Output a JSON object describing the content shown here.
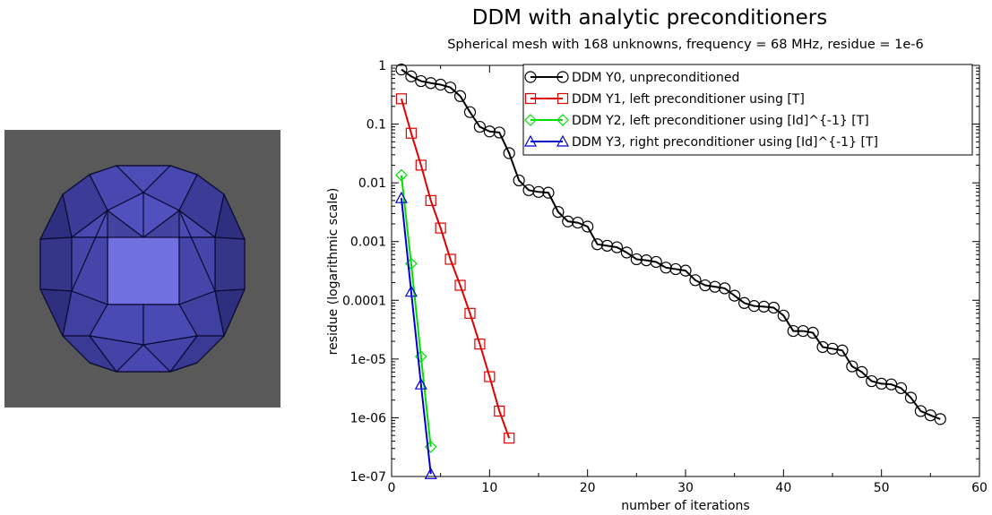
{
  "mesh_image": {
    "icon": "icosphere-mesh-render",
    "background": "#595959",
    "face_color": "#4a4aa8",
    "center_face_color": "#7070e0"
  },
  "chart_data": {
    "type": "line",
    "title": "DDM with analytic preconditioners",
    "subtitle": "Spherical mesh with 168 unknowns, frequency = 68 MHz, residue = 1e-6",
    "xlabel": "number of iterations",
    "ylabel": "residue (logarithmic scale)",
    "xlim": [
      0,
      60
    ],
    "ylim": [
      1e-07,
      1
    ],
    "yscale": "log",
    "xticks": [
      0,
      10,
      20,
      30,
      40,
      50,
      60
    ],
    "yticks": [
      {
        "value": 1,
        "label": "1"
      },
      {
        "value": 0.1,
        "label": "0.1"
      },
      {
        "value": 0.01,
        "label": "0.01"
      },
      {
        "value": 0.001,
        "label": "0.001"
      },
      {
        "value": 0.0001,
        "label": "0.0001"
      },
      {
        "value": 1e-05,
        "label": "1e-05"
      },
      {
        "value": 1e-06,
        "label": "1e-06"
      },
      {
        "value": 1e-07,
        "label": "1e-07"
      }
    ],
    "legend_position": "top-right",
    "grid": false,
    "series": [
      {
        "name": "DDM Y0, unpreconditioned",
        "color": "#000000",
        "marker": "circle",
        "x": [
          1,
          2,
          3,
          4,
          5,
          6,
          7,
          8,
          9,
          10,
          11,
          12,
          13,
          14,
          15,
          16,
          17,
          18,
          19,
          20,
          21,
          22,
          23,
          24,
          25,
          26,
          27,
          28,
          29,
          30,
          31,
          32,
          33,
          34,
          35,
          36,
          37,
          38,
          39,
          40,
          41,
          42,
          43,
          44,
          45,
          46,
          47,
          48,
          49,
          50,
          51,
          52,
          53,
          54,
          55,
          56
        ],
        "y": [
          0.85,
          0.65,
          0.54,
          0.5,
          0.47,
          0.42,
          0.3,
          0.16,
          0.09,
          0.075,
          0.072,
          0.032,
          0.011,
          0.0075,
          0.007,
          0.0068,
          0.0032,
          0.0022,
          0.0021,
          0.0018,
          0.0009,
          0.00085,
          0.0008,
          0.00065,
          0.0005,
          0.00048,
          0.00045,
          0.00036,
          0.00034,
          0.00032,
          0.00022,
          0.00018,
          0.00017,
          0.00016,
          0.00012,
          9e-05,
          8e-05,
          7.8e-05,
          7.5e-05,
          5.5e-05,
          3e-05,
          3e-05,
          2.8e-05,
          1.6e-05,
          1.5e-05,
          1.4e-05,
          7.5e-06,
          6e-06,
          4.2e-06,
          3.8e-06,
          3.7e-06,
          3.2e-06,
          2.2e-06,
          1.3e-06,
          1.1e-06,
          9.5e-07
        ]
      },
      {
        "name": "DDM Y1, left preconditioner using [T]",
        "color": "#e00000",
        "marker": "square",
        "x": [
          1,
          2,
          3,
          4,
          5,
          6,
          7,
          8,
          9,
          10,
          11,
          12
        ],
        "y": [
          0.27,
          0.07,
          0.02,
          0.005,
          0.0017,
          0.0005,
          0.00018,
          6e-05,
          1.8e-05,
          5e-06,
          1.3e-06,
          4.5e-07
        ]
      },
      {
        "name": "DDM Y2, left preconditioner using [Id]^{-1} [T]",
        "color": "#00e000",
        "marker": "diamond",
        "x": [
          1,
          2,
          3,
          4
        ],
        "y": [
          0.0135,
          0.00042,
          1.1e-05,
          3.2e-07
        ]
      },
      {
        "name": "DDM Y3, right preconditioner using [Id]^{-1} [T]",
        "color": "#0000d0",
        "marker": "triangle",
        "x": [
          1,
          2,
          3,
          4
        ],
        "y": [
          0.0055,
          0.00014,
          3.7e-06,
          1.1e-07
        ]
      }
    ]
  }
}
